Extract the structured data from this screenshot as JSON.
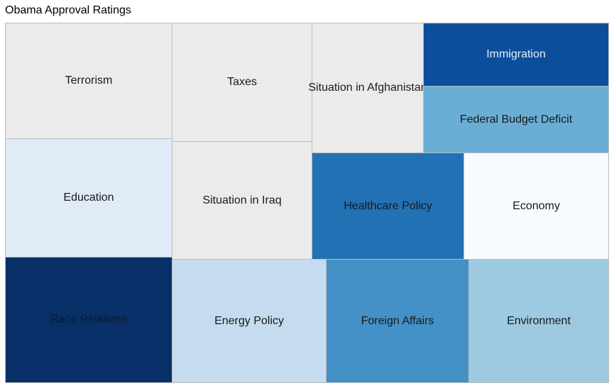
{
  "chart_data": {
    "type": "treemap",
    "title": "Obama Approval Ratings",
    "tiles": [
      {
        "label": "Terrorism",
        "color": "#ebebeb"
      },
      {
        "label": "Taxes",
        "color": "#ebebeb"
      },
      {
        "label": "Situation in Afghanistan",
        "color": "#ebebeb"
      },
      {
        "label": "Immigration",
        "color": "#0b4f9c"
      },
      {
        "label": "Federal Budget Deficit",
        "color": "#6aaed6"
      },
      {
        "label": "Education",
        "color": "#dfebf7"
      },
      {
        "label": "Situation in Iraq",
        "color": "#ebebeb"
      },
      {
        "label": "Healthcare Policy",
        "color": "#2271b5"
      },
      {
        "label": "Economy",
        "color": "#f7fbff"
      },
      {
        "label": "Race Relations",
        "color": "#082f68"
      },
      {
        "label": "Energy Policy",
        "color": "#c6dbef"
      },
      {
        "label": "Foreign Affairs",
        "color": "#4391c6"
      },
      {
        "label": "Environment",
        "color": "#9dcae1"
      }
    ]
  }
}
